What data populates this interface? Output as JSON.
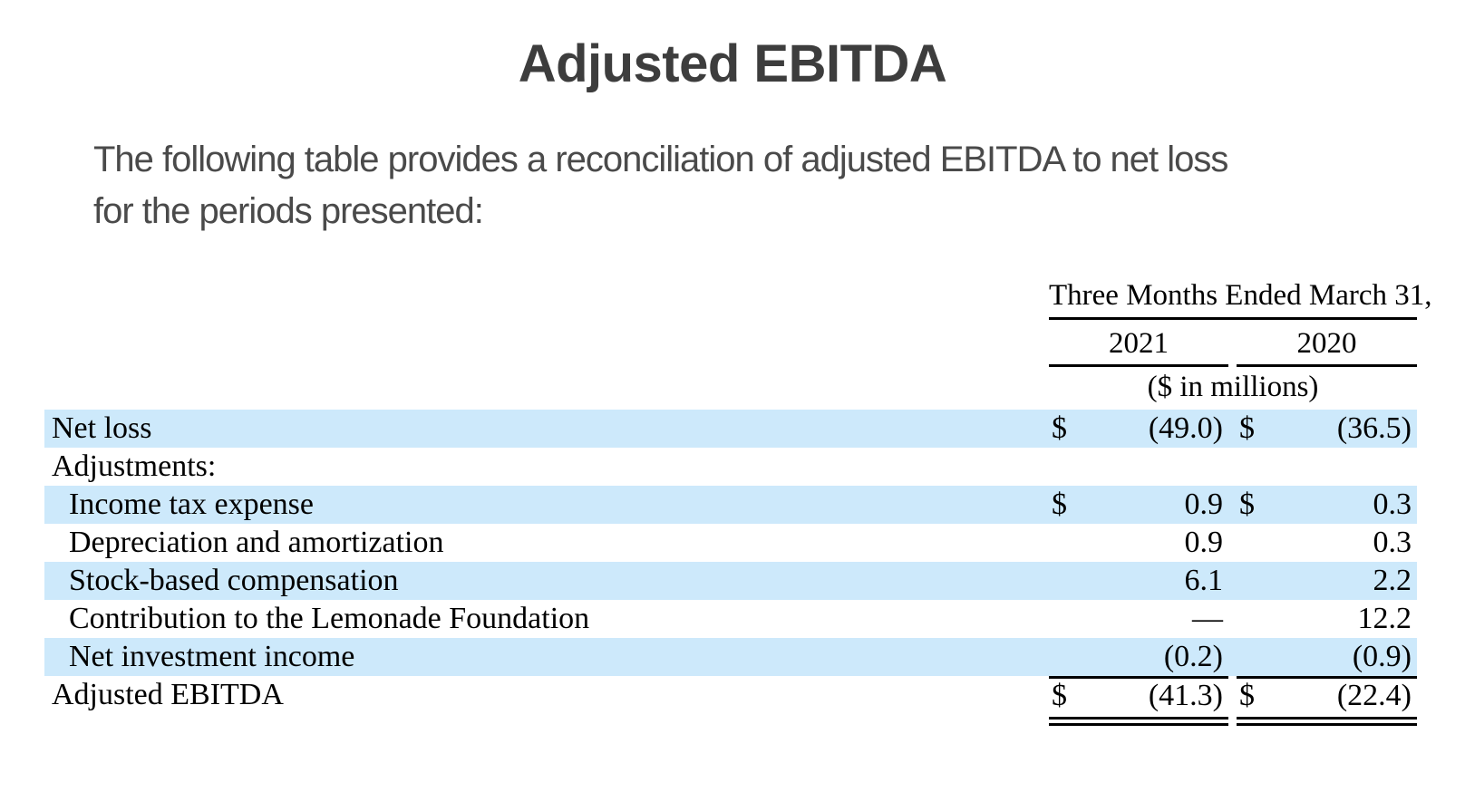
{
  "title": "Adjusted EBITDA",
  "intro": {
    "line1": "The following table provides a reconciliation of adjusted EBITDA to net loss",
    "line2": "for the periods presented:"
  },
  "table": {
    "period_header": "Three Months Ended March 31,",
    "columns": [
      "2021",
      "2020"
    ],
    "units_note": "($ in millions)",
    "rows": [
      {
        "label": "Net loss",
        "indent": false,
        "shaded": true,
        "total": false,
        "cur1": "$",
        "v2021": "(49.0)",
        "cur2": "$",
        "v2020": "(36.5)"
      },
      {
        "label": "Adjustments:",
        "indent": false,
        "shaded": false,
        "total": false,
        "v2021": "",
        "v2020": ""
      },
      {
        "label": "Income tax expense",
        "indent": true,
        "shaded": true,
        "total": false,
        "cur1": "$",
        "v2021": "0.9",
        "cur2": "$",
        "v2020": "0.3"
      },
      {
        "label": "Depreciation and amortization",
        "indent": true,
        "shaded": false,
        "total": false,
        "v2021": "0.9",
        "v2020": "0.3"
      },
      {
        "label": "Stock-based compensation",
        "indent": true,
        "shaded": true,
        "total": false,
        "v2021": "6.1",
        "v2020": "2.2"
      },
      {
        "label": "Contribution to the Lemonade Foundation",
        "indent": true,
        "shaded": false,
        "total": false,
        "v2021": "—",
        "v2020": "12.2"
      },
      {
        "label": "Net investment income",
        "indent": true,
        "shaded": true,
        "total": false,
        "v2021": "(0.2)",
        "v2020": "(0.9)"
      },
      {
        "label": "Adjusted EBITDA",
        "indent": false,
        "shaded": false,
        "total": true,
        "cur1": "$",
        "v2021": "(41.3)",
        "cur2": "$",
        "v2020": "(22.4)"
      }
    ]
  },
  "colors": {
    "stripe_blue": "#cde9fb",
    "title_gray": "#3d3d3d",
    "body_gray": "#4a4a4a",
    "rule_black": "#000000"
  }
}
